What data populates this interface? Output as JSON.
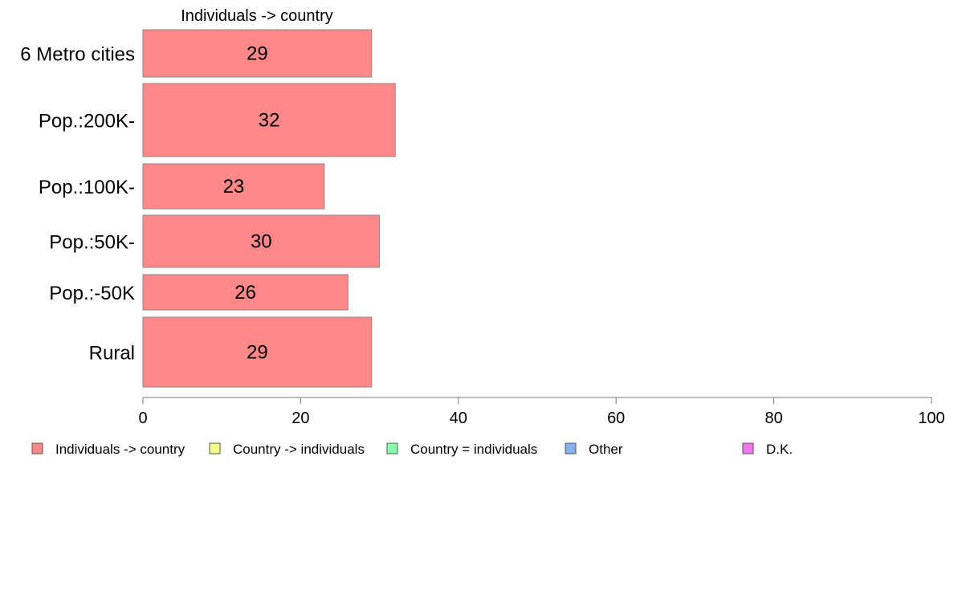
{
  "chart_data": {
    "type": "bar",
    "orientation": "horizontal",
    "title": "Individuals -> country",
    "xlabel": "",
    "ylabel": "",
    "categories": [
      "6 Metro cities",
      "Pop.:200K-",
      "Pop.:100K-",
      "Pop.:50K-",
      "Pop.:-50K",
      "Rural"
    ],
    "series": [
      {
        "name": "Individuals -> country",
        "color": "#ff8888",
        "values": [
          29,
          32,
          23,
          30,
          26,
          29
        ],
        "labels": [
          "29",
          "32",
          "23",
          "30",
          "26",
          "29"
        ]
      }
    ],
    "xlim": [
      0,
      100
    ],
    "xticks": [
      0,
      20,
      40,
      60,
      80,
      100
    ],
    "xtick_labels": [
      "0",
      "20",
      "40",
      "60",
      "80",
      "100"
    ],
    "grid": false,
    "legend_position": "bottom",
    "legend": [
      {
        "label": "Individuals -> country",
        "color": "#ff8888"
      },
      {
        "label": "Country -> individuals",
        "color": "#f2ff88"
      },
      {
        "label": "Country = individuals",
        "color": "#88ffaa"
      },
      {
        "label": "Other",
        "color": "#88b0f0"
      },
      {
        "label": "D.K.",
        "color": "#ee77ee"
      }
    ]
  }
}
